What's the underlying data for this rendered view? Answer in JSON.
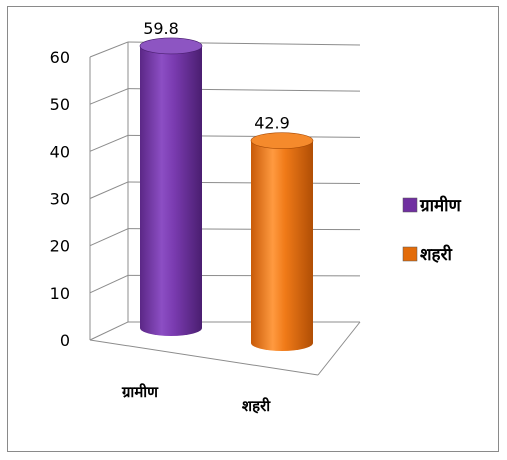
{
  "chart_data": {
    "type": "bar",
    "style": "3d-cylinder",
    "categories": [
      "ग्रामीण",
      "शहरी"
    ],
    "values": [
      59.8,
      42.9
    ],
    "data_labels": [
      "59.8",
      "42.9"
    ],
    "colors": [
      "#7030A0",
      "#E36C0A"
    ],
    "ylim": [
      0,
      60
    ],
    "yticks": [
      "0",
      "10",
      "20",
      "30",
      "40",
      "50",
      "60"
    ],
    "grid": true,
    "legend_position": "right",
    "legend": [
      {
        "label": "ग्रामीण",
        "color": "#7030A0"
      },
      {
        "label": "शहरी",
        "color": "#E36C0A"
      }
    ],
    "title": "",
    "xlabel": "",
    "ylabel": ""
  }
}
